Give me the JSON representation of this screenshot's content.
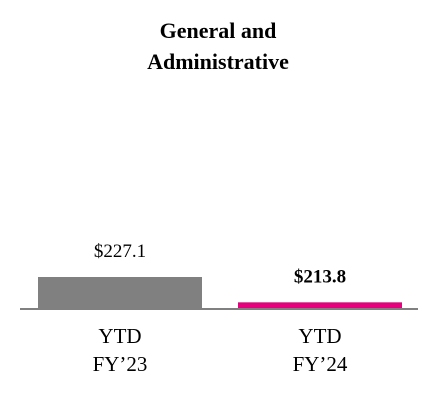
{
  "chart_data": {
    "type": "bar",
    "title": "General and Administrative",
    "title_lines": [
      "General and",
      "Administrative"
    ],
    "categories": [
      "YTD FY’23",
      "YTD FY’24"
    ],
    "category_lines": [
      [
        "YTD",
        "FY’23"
      ],
      [
        "YTD",
        "FY’24"
      ]
    ],
    "values": [
      227.1,
      213.8
    ],
    "data_labels": [
      "$227.1",
      "$213.8"
    ],
    "data_label_bold": [
      false,
      true
    ],
    "colors": [
      "#808080",
      "#e6007e"
    ],
    "baseline_color": "#808080",
    "ylim": [
      0,
      250
    ],
    "grid": false,
    "legend": "none",
    "xlabel": "",
    "ylabel": ""
  }
}
